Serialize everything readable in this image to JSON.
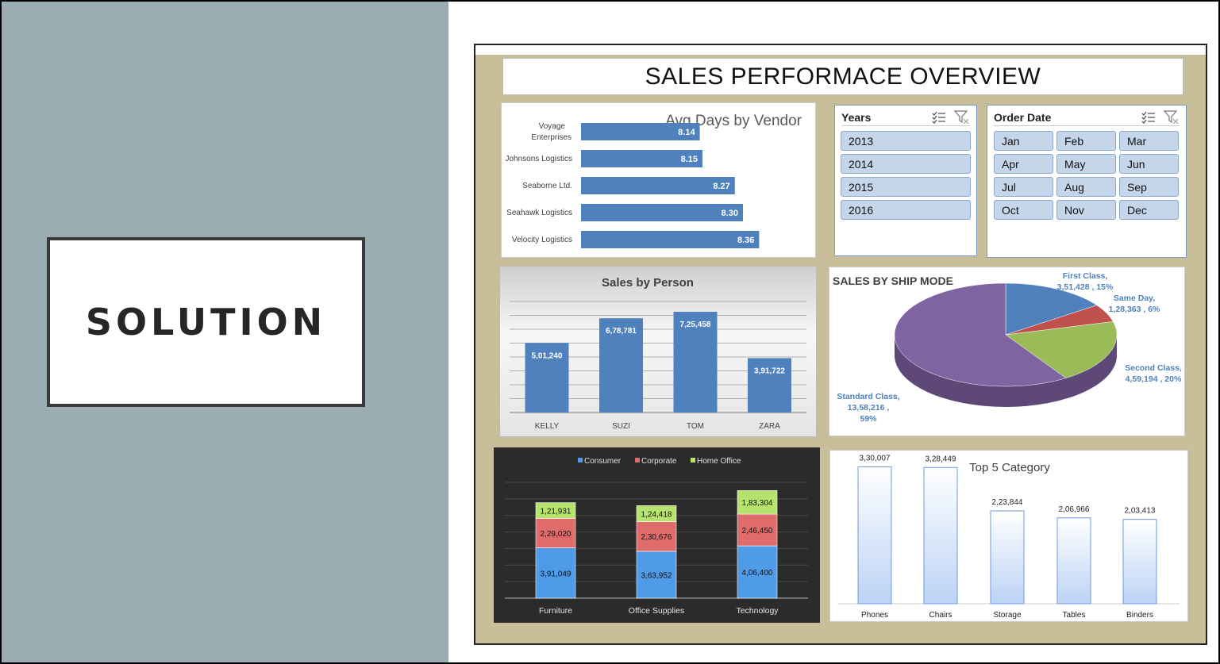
{
  "slide": {
    "solution_label": "SOLUTION"
  },
  "dashboard": {
    "title": "SALES PERFORMACE OVERVIEW",
    "colors": {
      "frame": "#c8bf9a",
      "bar_blue": "#4f81bd",
      "slicer_fill": "#c5d5ea"
    }
  },
  "years_slicer": {
    "title": "Years",
    "items": [
      "2013",
      "2014",
      "2015",
      "2016"
    ],
    "icons": [
      "multi-select-icon",
      "clear-filter-icon"
    ]
  },
  "order_date_slicer": {
    "title": "Order Date",
    "items": [
      "Jan",
      "Feb",
      "Mar",
      "Apr",
      "May",
      "Jun",
      "Jul",
      "Aug",
      "Sep",
      "Oct",
      "Nov",
      "Dec"
    ],
    "icons": [
      "multi-select-icon",
      "clear-filter-icon"
    ]
  },
  "chart_data": [
    {
      "id": "vendor",
      "type": "bar",
      "orientation": "horizontal",
      "title": "Avg Days by Vendor",
      "categories": [
        "Voyage Enterprises",
        "Johnsons Logistics",
        "Seaborne Ltd.",
        "Seahawk Logistics",
        "Velocity Logistics"
      ],
      "values": [
        8.14,
        8.15,
        8.27,
        8.3,
        8.36
      ],
      "value_labels": [
        "8.14",
        "8.15",
        "8.27",
        "8.30",
        "8.36"
      ]
    },
    {
      "id": "person",
      "type": "bar",
      "title": "Sales by Person",
      "categories": [
        "KELLY",
        "SUZI",
        "TOM",
        "ZARA"
      ],
      "values": [
        501240,
        678781,
        725458,
        391722
      ],
      "value_labels": [
        "5,01,240",
        "6,78,781",
        "7,25,458",
        "3,91,722"
      ],
      "ylim": [
        0,
        800000
      ],
      "grid": true
    },
    {
      "id": "shipmode",
      "type": "pie",
      "title": "SALES BY SHIP MODE",
      "slices": [
        {
          "label": "First Class",
          "value": 351428,
          "value_text": "3,51,428",
          "pct": "15%",
          "color": "#4f81bd"
        },
        {
          "label": "Same Day",
          "value": 128363,
          "value_text": "1,28,363",
          "pct": "6%",
          "color": "#c0504d"
        },
        {
          "label": "Second Class",
          "value": 459194,
          "value_text": "4,59,194",
          "pct": "20%",
          "color": "#9bbb59"
        },
        {
          "label": "Standard Class",
          "value": 1358216,
          "value_text": "13,58,216",
          "pct": "59%",
          "color": "#8064a2"
        }
      ]
    },
    {
      "id": "segment",
      "type": "bar",
      "stacked": true,
      "categories": [
        "Furniture",
        "Office Supplies",
        "Technology"
      ],
      "legend": "top",
      "series": [
        {
          "name": "Consumer",
          "values": [
            391049,
            363952,
            406400
          ],
          "value_labels": [
            "3,91,049",
            "3,63,952",
            "4,06,400"
          ],
          "color": "#4f9be8"
        },
        {
          "name": "Corporate",
          "values": [
            229020,
            230676,
            246450
          ],
          "value_labels": [
            "2,29,020",
            "2,30,676",
            "2,46,450"
          ],
          "color": "#e06b6b"
        },
        {
          "name": "Home Office",
          "values": [
            121931,
            124418,
            183304
          ],
          "value_labels": [
            "1,21,931",
            "1,24,418",
            "1,83,304"
          ],
          "color": "#b5e36b"
        }
      ],
      "ylim": [
        0,
        900000
      ],
      "grid": true
    },
    {
      "id": "category",
      "type": "bar",
      "title": "Top 5 Category",
      "categories": [
        "Phones",
        "Chairs",
        "Storage",
        "Tables",
        "Binders"
      ],
      "values": [
        330007,
        328449,
        223844,
        206966,
        203413
      ],
      "value_labels": [
        "3,30,007",
        "3,28,449",
        "2,23,844",
        "2,06,966",
        "2,03,413"
      ],
      "ylim": [
        0,
        350000
      ]
    }
  ]
}
